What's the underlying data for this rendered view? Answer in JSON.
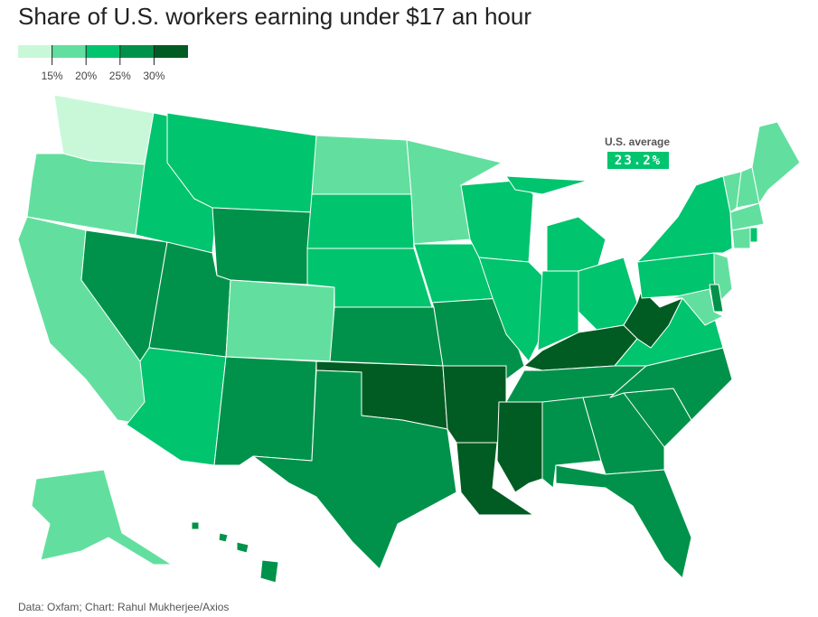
{
  "chart_data": {
    "type": "choropleth",
    "title": "Share of U.S. workers earning under $17 an hour",
    "legend": {
      "colors": [
        "#c9f8d9",
        "#62df9f",
        "#00c46e",
        "#00924a",
        "#005c22"
      ],
      "xlim": [
        10,
        35
      ],
      "ticks": [
        {
          "value": 15,
          "label": "15%"
        },
        {
          "value": 20,
          "label": "20%"
        },
        {
          "value": 25,
          "label": "25%"
        },
        {
          "value": 30,
          "label": "30%"
        }
      ]
    },
    "values": [
      13,
      18,
      18,
      27,
      23,
      23,
      27,
      27,
      23,
      18,
      27,
      18,
      23,
      23,
      27,
      32,
      27,
      18,
      23,
      27,
      32,
      32,
      32,
      23,
      23,
      23,
      23,
      23,
      32,
      27,
      27,
      27,
      27,
      27,
      27,
      23,
      32,
      23,
      23,
      18,
      18,
      18,
      18,
      18,
      23,
      18,
      27,
      18,
      18,
      27
    ],
    "average": {
      "label": "U.S. average",
      "value": 23.2,
      "value_label": "23.2%"
    },
    "source": "Data: Oxfam; Chart: Rahul Mukherjee/Axios"
  }
}
